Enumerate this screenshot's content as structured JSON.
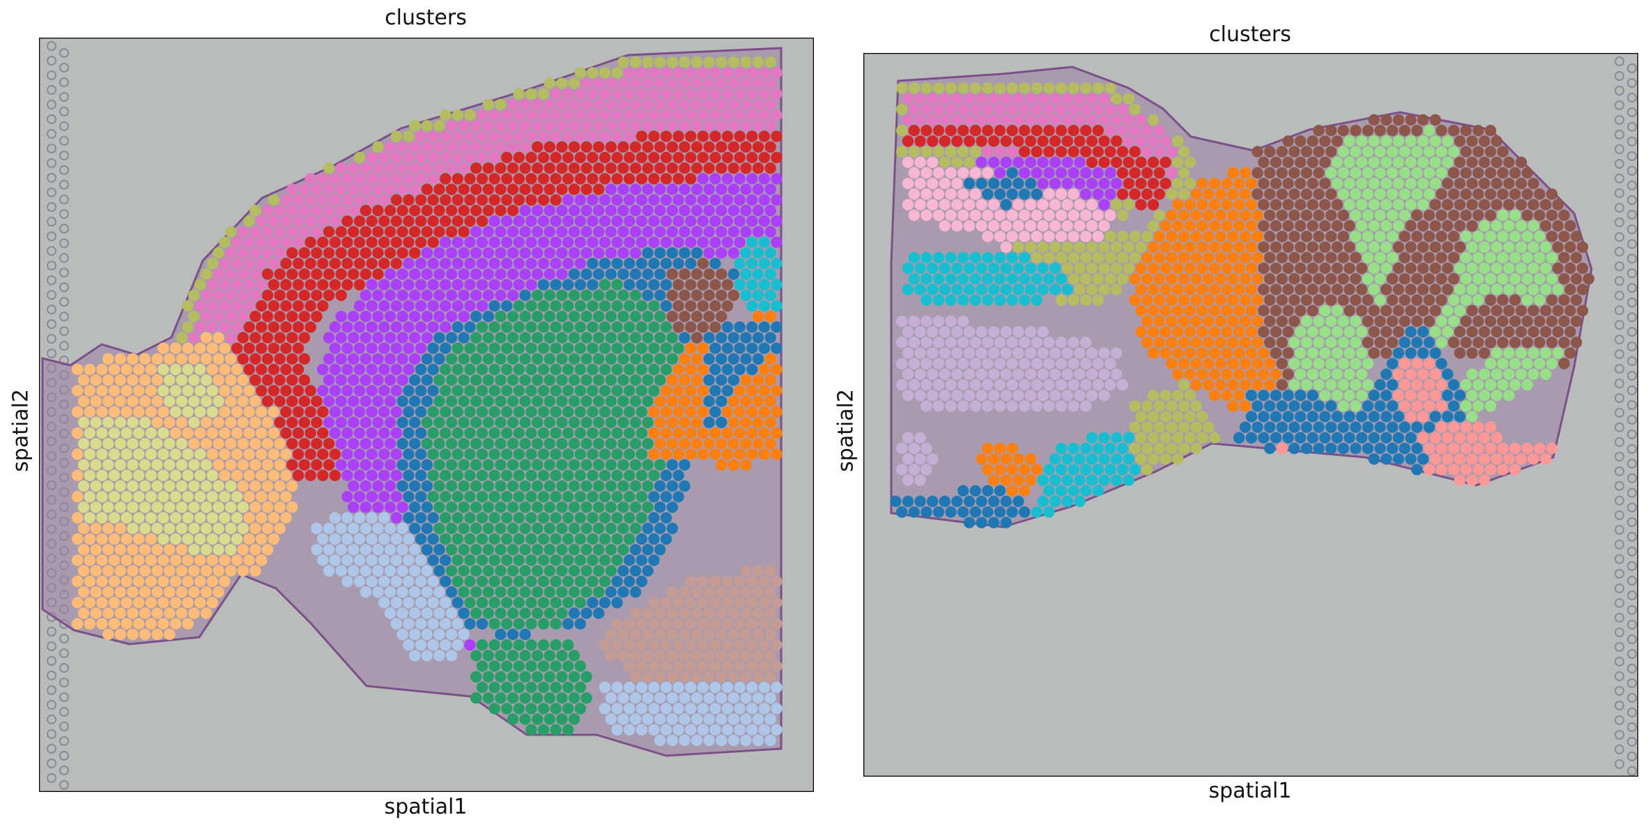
{
  "chart_data": [
    {
      "type": "scatter",
      "title": "clusters",
      "xlabel": "spatial1",
      "ylabel": "spatial2",
      "background": "H&E tissue image",
      "ticks": "none",
      "legend": "none"
    },
    {
      "type": "scatter",
      "title": "clusters",
      "xlabel": "spatial1",
      "ylabel": "spatial2",
      "background": "H&E tissue image",
      "ticks": "none",
      "legend": "none"
    }
  ],
  "colors": {
    "c0": "#1f77b4",
    "c1": "#ff7f0e",
    "c2": "#279e68",
    "c3": "#d62728",
    "c4": "#aa40fc",
    "c5": "#8c564b",
    "c6": "#e377c2",
    "c7": "#b5bd61",
    "c8": "#17becf",
    "c9": "#aec7e8",
    "c10": "#ffbb78",
    "c11": "#98df8a",
    "c12": "#ff9896",
    "c13": "#c5b0d5",
    "c14": "#c49c94",
    "c15": "#f7b6d2",
    "c16": "#dbdb8d",
    "c17": "#ad494a",
    "tissue_bg": "#b9bcba",
    "tissue": "#9c7fa4"
  }
}
